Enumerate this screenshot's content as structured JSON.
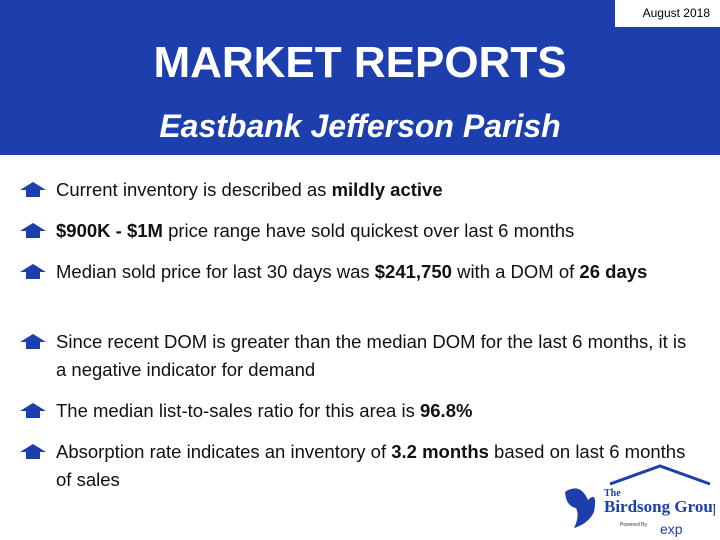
{
  "header": {
    "date": "August 2018",
    "title": "MARKET REPORTS",
    "subtitle": "Eastbank Jefferson Parish"
  },
  "bullets": [
    [
      {
        "text": "Current inventory is described as ",
        "bold": false
      },
      {
        "text": "mildly active",
        "bold": true
      }
    ],
    [
      {
        "text": "$900K - $1M",
        "bold": true
      },
      {
        "text": " price range have sold quickest over last 6 months",
        "bold": false
      }
    ],
    [
      {
        "text": "Median sold price for last 30 days was ",
        "bold": false
      },
      {
        "text": "$241,750",
        "bold": true
      },
      {
        "text": " with a DOM of ",
        "bold": false
      },
      {
        "text": "26 days",
        "bold": true
      }
    ],
    [
      {
        "text": "Since recent DOM is greater than the median DOM for the last 6 months, it is a negative indicator for demand",
        "bold": false
      }
    ],
    [
      {
        "text": "The median list-to-sales ratio for this area is ",
        "bold": false
      },
      {
        "text": "96.8%",
        "bold": true
      }
    ],
    [
      {
        "text": "Absorption rate indicates an inventory of ",
        "bold": false
      },
      {
        "text": "3.2 months",
        "bold": true
      },
      {
        "text": " based on last 6 months of sales",
        "bold": false
      }
    ]
  ],
  "logo": {
    "the": "The",
    "name": "Birdsong Group",
    "powered": "Powered By",
    "brand": "exp"
  }
}
